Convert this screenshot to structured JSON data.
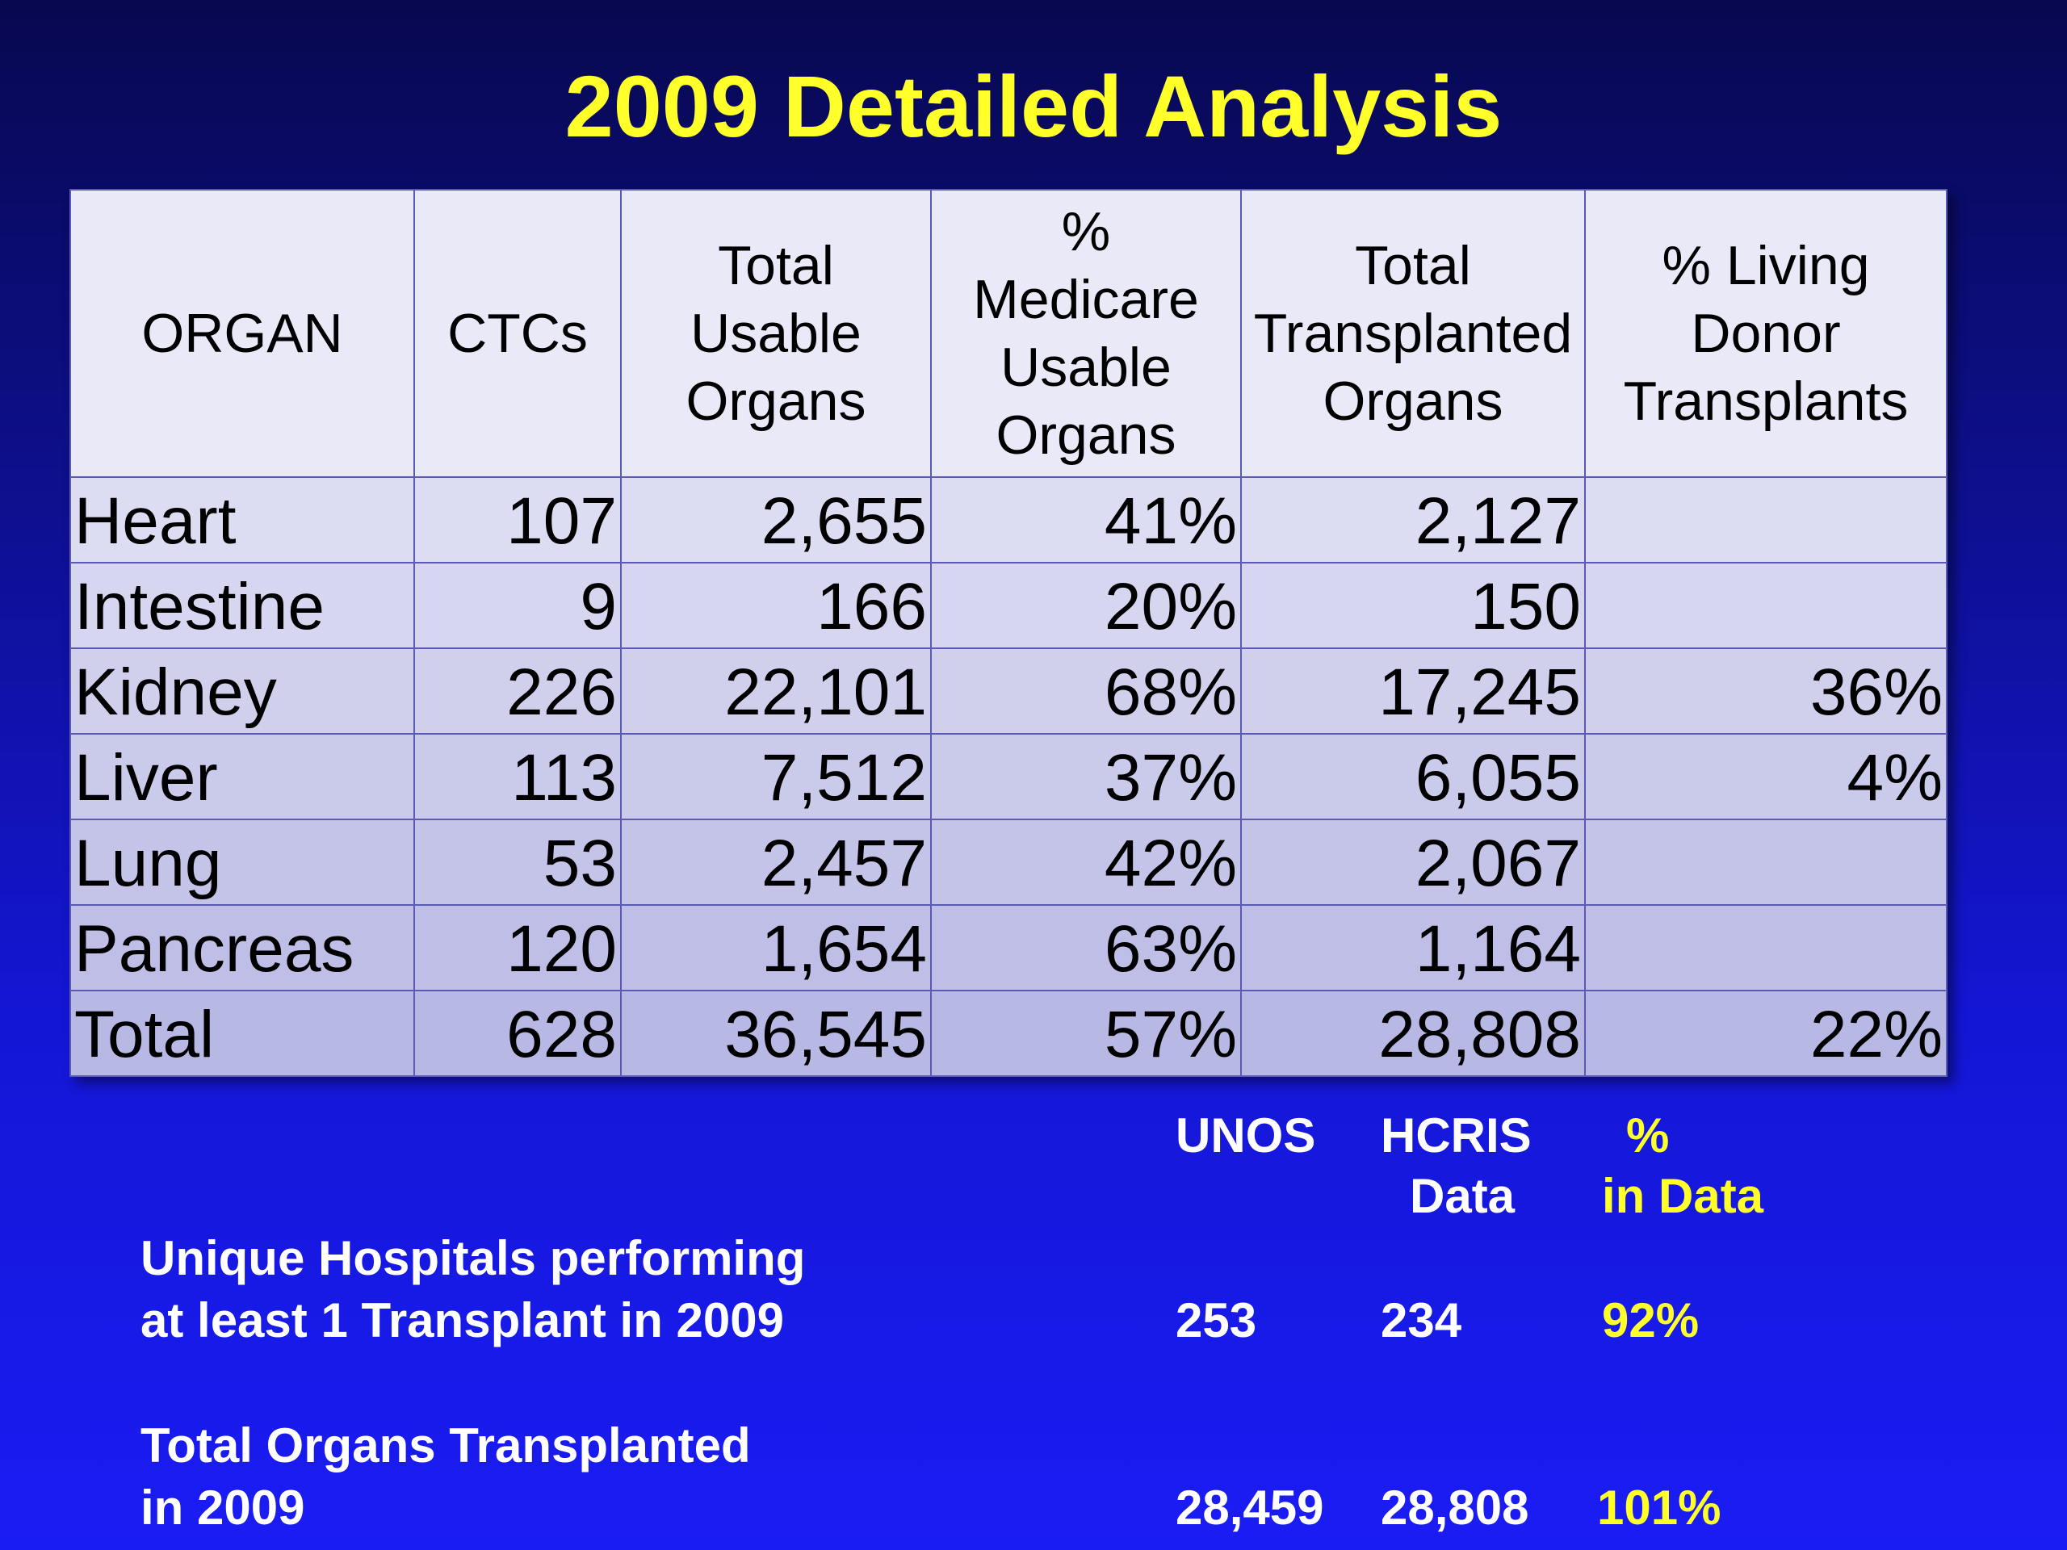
{
  "title": "2009 Detailed Analysis",
  "table": {
    "headers": [
      "ORGAN",
      "CTCs",
      "Total\nUsable\nOrgans",
      "%\nMedicare\nUsable\nOrgans",
      "Total\nTransplanted\nOrgans",
      "% Living\nDonor\nTransplants"
    ],
    "rows": [
      [
        "Heart",
        "107",
        "2,655",
        "41%",
        "2,127",
        ""
      ],
      [
        "Intestine",
        "9",
        "166",
        "20%",
        "150",
        ""
      ],
      [
        "Kidney",
        "226",
        "22,101",
        "68%",
        "17,245",
        "36%"
      ],
      [
        "Liver",
        "113",
        "7,512",
        "37%",
        "6,055",
        "4%"
      ],
      [
        "Lung",
        "53",
        "2,457",
        "42%",
        "2,067",
        ""
      ],
      [
        "Pancreas",
        "120",
        "1,654",
        "63%",
        "1,164",
        ""
      ],
      [
        "Total",
        "628",
        "36,545",
        "57%",
        "28,808",
        "22%"
      ]
    ]
  },
  "summary": {
    "col_unos": "UNOS",
    "col_hcris_1": "HCRIS",
    "col_hcris_2": "Data",
    "col_pct_1": "%",
    "col_pct_2": "in Data",
    "row1_label_1": "Unique Hospitals performing",
    "row1_label_2": "at least 1 Transplant in 2009",
    "row1_unos": "253",
    "row1_hcris": "234",
    "row1_pct": "92%",
    "row2_label_1": "Total Organs Transplanted",
    "row2_label_2": "in 2009",
    "row2_unos": "28,459",
    "row2_hcris": "28,808",
    "row2_pct": "101%"
  }
}
